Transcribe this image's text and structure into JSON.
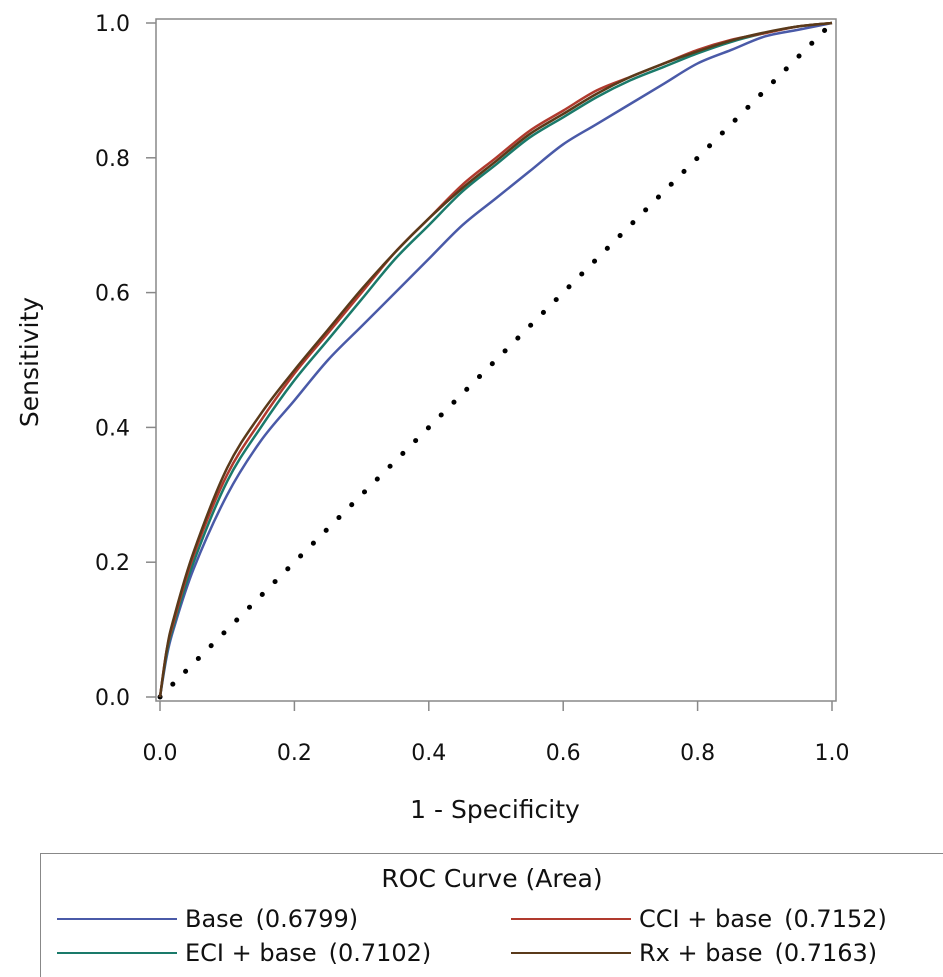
{
  "chart_data": {
    "type": "line",
    "title": "",
    "xlabel": "1 - Specificity",
    "ylabel": "Sensitivity",
    "xlim": [
      0,
      1
    ],
    "ylim": [
      0,
      1
    ],
    "x_ticks": [
      "0.0",
      "0.2",
      "0.4",
      "0.6",
      "0.8",
      "1.0"
    ],
    "y_ticks": [
      "0.0",
      "0.2",
      "0.4",
      "0.6",
      "0.8",
      "1.0"
    ],
    "grid": false,
    "legend_title": "ROC Curve (Area)",
    "legend_position": "bottom",
    "reference_line": {
      "style": "dotted",
      "color": "#000000",
      "x": [
        0,
        1
      ],
      "y": [
        0,
        1
      ]
    },
    "series": [
      {
        "name": "Base",
        "area": "(0.6799)",
        "color": "#4a5aa8",
        "x": [
          0,
          0.01,
          0.02,
          0.05,
          0.1,
          0.15,
          0.2,
          0.25,
          0.3,
          0.35,
          0.4,
          0.45,
          0.5,
          0.55,
          0.6,
          0.65,
          0.7,
          0.75,
          0.8,
          0.85,
          0.9,
          0.95,
          1.0
        ],
        "y": [
          0,
          0.06,
          0.1,
          0.19,
          0.3,
          0.38,
          0.44,
          0.5,
          0.55,
          0.6,
          0.65,
          0.7,
          0.74,
          0.78,
          0.82,
          0.85,
          0.88,
          0.91,
          0.94,
          0.96,
          0.98,
          0.99,
          1.0
        ]
      },
      {
        "name": "CCI + base",
        "area": "(0.7152)",
        "color": "#b03a2e",
        "x": [
          0,
          0.01,
          0.02,
          0.05,
          0.1,
          0.15,
          0.2,
          0.25,
          0.3,
          0.35,
          0.4,
          0.45,
          0.5,
          0.55,
          0.6,
          0.65,
          0.7,
          0.75,
          0.8,
          0.85,
          0.9,
          0.95,
          1.0
        ],
        "y": [
          0,
          0.07,
          0.11,
          0.21,
          0.33,
          0.41,
          0.48,
          0.54,
          0.6,
          0.66,
          0.71,
          0.76,
          0.8,
          0.84,
          0.87,
          0.9,
          0.92,
          0.94,
          0.96,
          0.975,
          0.985,
          0.995,
          1.0
        ]
      },
      {
        "name": "ECI + base",
        "area": "(0.7102)",
        "color": "#1a7a6a",
        "x": [
          0,
          0.01,
          0.02,
          0.05,
          0.1,
          0.15,
          0.2,
          0.25,
          0.3,
          0.35,
          0.4,
          0.45,
          0.5,
          0.55,
          0.6,
          0.65,
          0.7,
          0.75,
          0.8,
          0.85,
          0.9,
          0.95,
          1.0
        ],
        "y": [
          0,
          0.065,
          0.105,
          0.2,
          0.32,
          0.4,
          0.47,
          0.53,
          0.59,
          0.65,
          0.7,
          0.75,
          0.79,
          0.83,
          0.86,
          0.89,
          0.915,
          0.935,
          0.955,
          0.972,
          0.985,
          0.995,
          1.0
        ]
      },
      {
        "name": "Rx + base",
        "area": "(0.7163)",
        "color": "#5a3a1a",
        "x": [
          0,
          0.01,
          0.02,
          0.05,
          0.1,
          0.15,
          0.2,
          0.25,
          0.3,
          0.35,
          0.4,
          0.45,
          0.5,
          0.55,
          0.6,
          0.65,
          0.7,
          0.75,
          0.8,
          0.85,
          0.9,
          0.95,
          1.0
        ],
        "y": [
          0,
          0.07,
          0.115,
          0.215,
          0.34,
          0.42,
          0.485,
          0.545,
          0.605,
          0.66,
          0.71,
          0.755,
          0.795,
          0.835,
          0.865,
          0.895,
          0.92,
          0.94,
          0.958,
          0.974,
          0.986,
          0.995,
          1.0
        ]
      }
    ]
  }
}
